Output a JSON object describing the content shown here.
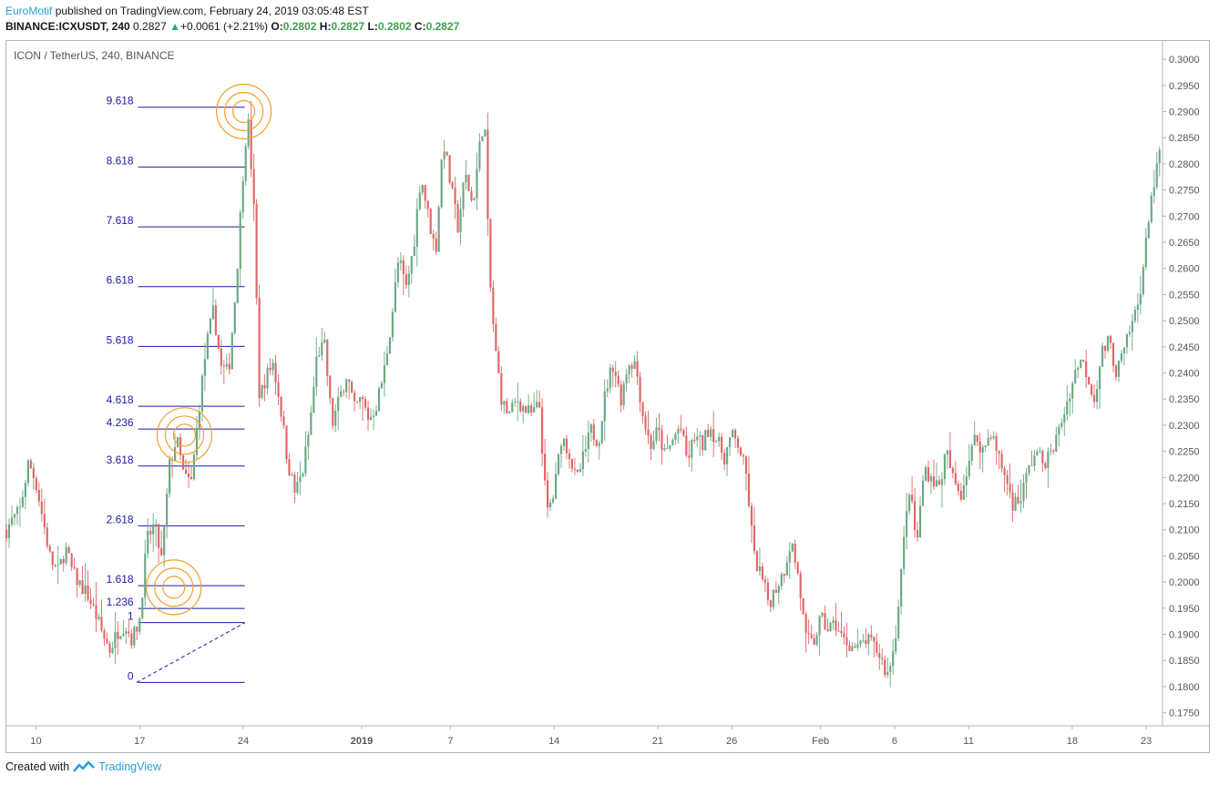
{
  "header": {
    "author": "EuroMotif",
    "published_text": "published on TradingView.com, February 24, 2019 03:05:48 EST",
    "symbol": "BINANCE:ICXUSDT, 240",
    "last": "0.2827",
    "change": "+0.0061 (+2.21%)",
    "o_label": "O:",
    "o_value": "0.2802",
    "h_label": "H:",
    "h_value": "0.2827",
    "l_label": "L:",
    "l_value": "0.2802",
    "c_label": "C:",
    "c_value": "0.2827"
  },
  "chart_title": "ICON / TetherUS, 240, BINANCE",
  "footer": {
    "created_with": "Created with",
    "brand": "TradingView"
  },
  "colors": {
    "up": "#26a69a",
    "down": "#ef5350",
    "candle_up": "#6aa883",
    "candle_down": "#e06666",
    "fib": "#1a1aa8",
    "circle": "#f0a030",
    "axis_text": "#555555"
  },
  "chart_data": {
    "type": "candlestick",
    "ylim": [
      0.1725,
      0.3035
    ],
    "y_ticks": [
      "0.3000",
      "0.2950",
      "0.2900",
      "0.2850",
      "0.2800",
      "0.2750",
      "0.2700",
      "0.2650",
      "0.2600",
      "0.2550",
      "0.2500",
      "0.2450",
      "0.2400",
      "0.2350",
      "0.2300",
      "0.2250",
      "0.2200",
      "0.2150",
      "0.2100",
      "0.2050",
      "0.2000",
      "0.1950",
      "0.1900",
      "0.1850",
      "0.1800",
      "0.1750"
    ],
    "x_ticks": [
      {
        "label": "10",
        "t": 0.5
      },
      {
        "label": "17",
        "t": 7.5
      },
      {
        "label": "24",
        "t": 14.5
      },
      {
        "label": "2019",
        "t": 22.5,
        "bold": true
      },
      {
        "label": "7",
        "t": 28.5
      },
      {
        "label": "14",
        "t": 35.5
      },
      {
        "label": "21",
        "t": 42.5
      },
      {
        "label": "26",
        "t": 47.5
      },
      {
        "label": "Feb",
        "t": 53.5
      },
      {
        "label": "6",
        "t": 58.5
      },
      {
        "label": "11",
        "t": 63.5
      },
      {
        "label": "18",
        "t": 70.5
      },
      {
        "label": "23",
        "t": 75.5
      }
    ],
    "x_range": [
      -1.5,
      76.6
    ],
    "anchors": [
      [
        -1.5,
        0.21
      ],
      [
        -1.2,
        0.2115
      ],
      [
        -0.6,
        0.2135
      ],
      [
        0,
        0.223
      ],
      [
        0.5,
        0.219
      ],
      [
        1,
        0.2115
      ],
      [
        1.5,
        0.204
      ],
      [
        2,
        0.202
      ],
      [
        2.5,
        0.2065
      ],
      [
        3,
        0.2015
      ],
      [
        3.5,
        0.1995
      ],
      [
        4,
        0.1975
      ],
      [
        4.5,
        0.194
      ],
      [
        5,
        0.19
      ],
      [
        5.5,
        0.187
      ],
      [
        6,
        0.1905
      ],
      [
        6.5,
        0.192
      ],
      [
        7,
        0.189
      ],
      [
        7.5,
        0.193
      ],
      [
        8,
        0.208
      ],
      [
        8.5,
        0.211
      ],
      [
        9,
        0.204
      ],
      [
        9.5,
        0.222
      ],
      [
        10,
        0.2275
      ],
      [
        10.5,
        0.22
      ],
      [
        11,
        0.219
      ],
      [
        11.5,
        0.233
      ],
      [
        12,
        0.245
      ],
      [
        12.5,
        0.252
      ],
      [
        13,
        0.241
      ],
      [
        13.5,
        0.24
      ],
      [
        14,
        0.256
      ],
      [
        14.5,
        0.279
      ],
      [
        14.8,
        0.2895
      ],
      [
        15.2,
        0.273
      ],
      [
        15.6,
        0.235
      ],
      [
        16,
        0.239
      ],
      [
        16.5,
        0.242
      ],
      [
        17,
        0.234
      ],
      [
        17.5,
        0.223
      ],
      [
        18,
        0.217
      ],
      [
        18.5,
        0.221
      ],
      [
        19,
        0.23
      ],
      [
        19.5,
        0.244
      ],
      [
        20,
        0.245
      ],
      [
        20.5,
        0.23
      ],
      [
        21,
        0.235
      ],
      [
        21.5,
        0.24
      ],
      [
        22,
        0.233
      ],
      [
        22.5,
        0.235
      ],
      [
        23,
        0.231
      ],
      [
        23.5,
        0.234
      ],
      [
        24,
        0.24
      ],
      [
        24.5,
        0.25
      ],
      [
        25,
        0.262
      ],
      [
        25.5,
        0.256
      ],
      [
        26,
        0.264
      ],
      [
        26.5,
        0.278
      ],
      [
        27,
        0.27
      ],
      [
        27.5,
        0.263
      ],
      [
        28,
        0.285
      ],
      [
        28.5,
        0.276
      ],
      [
        29,
        0.268
      ],
      [
        29.5,
        0.278
      ],
      [
        30,
        0.272
      ],
      [
        30.5,
        0.284
      ],
      [
        30.8,
        0.2895
      ],
      [
        31.1,
        0.26
      ],
      [
        31.5,
        0.245
      ],
      [
        32,
        0.234
      ],
      [
        32.5,
        0.232
      ],
      [
        33,
        0.235
      ],
      [
        33.5,
        0.233
      ],
      [
        34,
        0.232
      ],
      [
        34.5,
        0.234
      ],
      [
        35,
        0.213
      ],
      [
        35.5,
        0.217
      ],
      [
        36,
        0.228
      ],
      [
        36.5,
        0.225
      ],
      [
        37,
        0.219
      ],
      [
        37.5,
        0.224
      ],
      [
        38,
        0.229
      ],
      [
        38.5,
        0.227
      ],
      [
        39,
        0.237
      ],
      [
        39.5,
        0.242
      ],
      [
        40,
        0.235
      ],
      [
        40.5,
        0.242
      ],
      [
        41,
        0.242
      ],
      [
        41.5,
        0.232
      ],
      [
        42,
        0.226
      ],
      [
        42.5,
        0.229
      ],
      [
        43,
        0.224
      ],
      [
        43.5,
        0.227
      ],
      [
        44,
        0.23
      ],
      [
        44.5,
        0.223
      ],
      [
        45,
        0.228
      ],
      [
        45.5,
        0.226
      ],
      [
        46,
        0.23
      ],
      [
        46.5,
        0.227
      ],
      [
        47,
        0.224
      ],
      [
        47.5,
        0.228
      ],
      [
        48,
        0.226
      ],
      [
        48.5,
        0.22
      ],
      [
        49,
        0.205
      ],
      [
        49.5,
        0.201
      ],
      [
        50,
        0.196
      ],
      [
        50.5,
        0.199
      ],
      [
        51,
        0.202
      ],
      [
        51.5,
        0.208
      ],
      [
        52,
        0.201
      ],
      [
        52.5,
        0.189
      ],
      [
        53,
        0.188
      ],
      [
        53.5,
        0.193
      ],
      [
        54,
        0.191
      ],
      [
        54.5,
        0.192
      ],
      [
        55,
        0.189
      ],
      [
        55.5,
        0.188
      ],
      [
        56,
        0.187
      ],
      [
        56.5,
        0.189
      ],
      [
        57,
        0.188
      ],
      [
        57.5,
        0.186
      ],
      [
        58,
        0.182
      ],
      [
        58.5,
        0.188
      ],
      [
        59,
        0.204
      ],
      [
        59.5,
        0.218
      ],
      [
        60,
        0.207
      ],
      [
        60.5,
        0.222
      ],
      [
        61,
        0.22
      ],
      [
        61.5,
        0.218
      ],
      [
        62,
        0.225
      ],
      [
        62.5,
        0.219
      ],
      [
        63,
        0.217
      ],
      [
        63.5,
        0.223
      ],
      [
        64,
        0.228
      ],
      [
        64.5,
        0.225
      ],
      [
        65,
        0.229
      ],
      [
        65.5,
        0.224
      ],
      [
        66,
        0.22
      ],
      [
        66.5,
        0.215
      ],
      [
        67,
        0.216
      ],
      [
        67.5,
        0.221
      ],
      [
        68,
        0.225
      ],
      [
        68.5,
        0.223
      ],
      [
        69,
        0.224
      ],
      [
        69.5,
        0.228
      ],
      [
        70,
        0.233
      ],
      [
        70.5,
        0.238
      ],
      [
        71,
        0.243
      ],
      [
        71.5,
        0.24
      ],
      [
        72,
        0.235
      ],
      [
        72.5,
        0.244
      ],
      [
        73,
        0.246
      ],
      [
        73.5,
        0.24
      ],
      [
        74,
        0.244
      ],
      [
        74.5,
        0.249
      ],
      [
        75,
        0.254
      ],
      [
        75.5,
        0.265
      ],
      [
        75.8,
        0.274
      ],
      [
        76.1,
        0.276
      ],
      [
        76.4,
        0.2827
      ]
    ],
    "fibonacci": {
      "base_price": 0.1808,
      "unit": 0.01144,
      "t_start": 7.4,
      "t_end": 14.6,
      "levels": [
        "0",
        "1",
        "1.236",
        "1.618",
        "2.618",
        "3.618",
        "4.236",
        "4.618",
        "5.618",
        "6.618",
        "7.618",
        "8.618",
        "9.618"
      ]
    },
    "trend_line": {
      "from": [
        7.3,
        0.1808
      ],
      "to": [
        14.6,
        0.1922
      ]
    },
    "circles": [
      {
        "t": 14.54,
        "price": 0.29
      },
      {
        "t": 10.53,
        "price": 0.2281
      },
      {
        "t": 9.81,
        "price": 0.199
      }
    ]
  }
}
